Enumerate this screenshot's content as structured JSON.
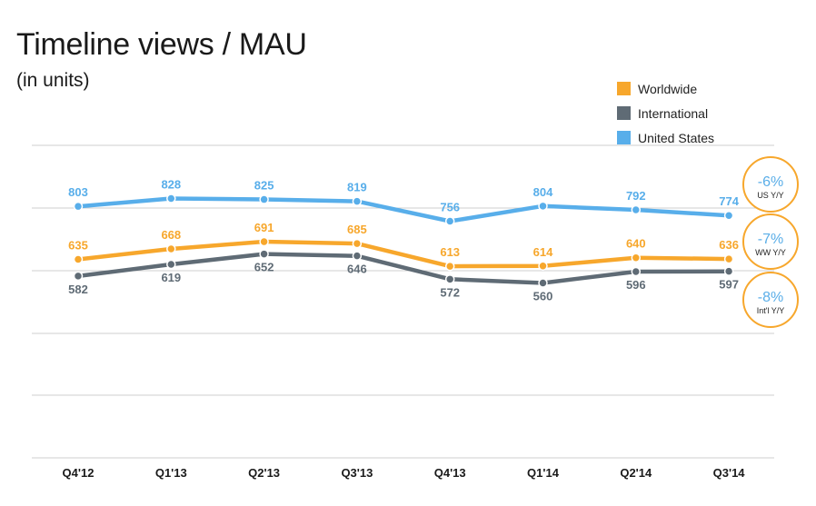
{
  "chart_data": {
    "type": "line",
    "title": "Timeline views / MAU",
    "subtitle": "(in units)",
    "categories": [
      "Q4'12",
      "Q1'13",
      "Q2'13",
      "Q3'13",
      "Q4'13",
      "Q1'14",
      "Q2'14",
      "Q3'14"
    ],
    "series": [
      {
        "name": "Worldwide",
        "color": "#f7a72c",
        "values": [
          635,
          668,
          691,
          685,
          613,
          614,
          640,
          636
        ],
        "label_position": "above"
      },
      {
        "name": "International",
        "color": "#5f6b75",
        "values": [
          582,
          619,
          652,
          646,
          572,
          560,
          596,
          597
        ],
        "label_position": "below"
      },
      {
        "name": "United States",
        "color": "#58aeea",
        "values": [
          803,
          828,
          825,
          819,
          756,
          804,
          792,
          774
        ],
        "label_position": "above"
      }
    ],
    "legend": "top-right",
    "grid": true,
    "badges": [
      {
        "value": "-6%",
        "label": "US Y/Y"
      },
      {
        "value": "-7%",
        "label": "WW Y/Y"
      },
      {
        "value": "-8%",
        "label": "Int'l Y/Y"
      }
    ]
  },
  "colors": {
    "badge_border": "#f7a72c",
    "badge_text": "#5aaee8",
    "gridline": "#cfcfcf"
  }
}
